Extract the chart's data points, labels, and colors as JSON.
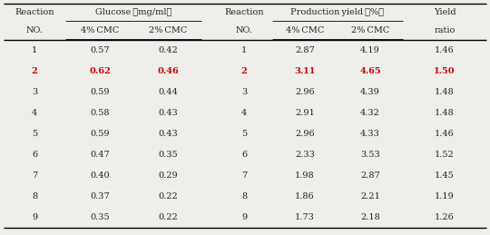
{
  "left_table": {
    "rows": [
      [
        1,
        "0.57",
        "0.42"
      ],
      [
        2,
        "0.62",
        "0.46"
      ],
      [
        3,
        "0.59",
        "0.44"
      ],
      [
        4,
        "0.58",
        "0.43"
      ],
      [
        5,
        "0.59",
        "0.43"
      ],
      [
        6,
        "0.47",
        "0.35"
      ],
      [
        7,
        "0.40",
        "0.29"
      ],
      [
        8,
        "0.37",
        "0.22"
      ],
      [
        9,
        "0.35",
        "0.22"
      ]
    ],
    "highlight_row": 2
  },
  "right_table": {
    "rows": [
      [
        1,
        "2.87",
        "4.19",
        "1.46"
      ],
      [
        2,
        "3.11",
        "4.65",
        "1.50"
      ],
      [
        3,
        "2.96",
        "4.39",
        "1.48"
      ],
      [
        4,
        "2.91",
        "4.32",
        "1.48"
      ],
      [
        5,
        "2.96",
        "4.33",
        "1.46"
      ],
      [
        6,
        "2.33",
        "3.53",
        "1.52"
      ],
      [
        7,
        "1.98",
        "2.87",
        "1.45"
      ],
      [
        8,
        "1.86",
        "2.21",
        "1.19"
      ],
      [
        9,
        "1.73",
        "2.18",
        "1.26"
      ]
    ],
    "highlight_row": 2
  },
  "highlight_color": "#cc0000",
  "normal_color": "#222222",
  "bg_color": "#f0eeea",
  "font_size": 7.0,
  "header_font_size": 7.0,
  "glucose_header": "Glucose （mg/ml）",
  "production_header": "Production yield （%）"
}
